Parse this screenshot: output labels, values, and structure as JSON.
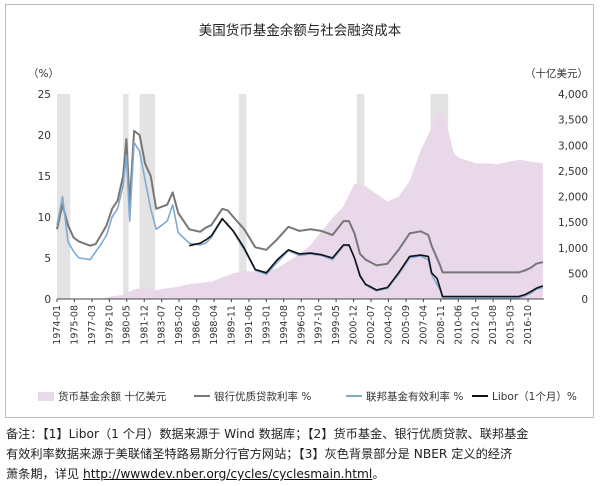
{
  "chart_data": {
    "type": "area+line",
    "title": "美国货币基金余额与社会融资成本",
    "left_unit": "（%）",
    "right_unit": "（十亿美元）",
    "left_ticks": [
      "0",
      "5",
      "10",
      "15",
      "20",
      "25"
    ],
    "left_range": [
      0,
      25
    ],
    "right_ticks": [
      "0",
      "500",
      "1,000",
      "1,500",
      "2,000",
      "2,500",
      "3,000",
      "3,500",
      "4,000"
    ],
    "right_range": [
      0,
      4000
    ],
    "x_range": [
      1974.0,
      2018.2
    ],
    "x_ticks": [
      {
        "label": "1974-01",
        "t": 1974.0
      },
      {
        "label": "1975-08",
        "t": 1975.58
      },
      {
        "label": "1977-03",
        "t": 1977.17
      },
      {
        "label": "1978-10",
        "t": 1978.75
      },
      {
        "label": "1980-05",
        "t": 1980.33
      },
      {
        "label": "1981-12",
        "t": 1981.92
      },
      {
        "label": "1983-07",
        "t": 1983.5
      },
      {
        "label": "1985-02",
        "t": 1985.08
      },
      {
        "label": "1986-09",
        "t": 1986.67
      },
      {
        "label": "1988-04",
        "t": 1988.25
      },
      {
        "label": "1989-11",
        "t": 1989.83
      },
      {
        "label": "1991-06",
        "t": 1991.42
      },
      {
        "label": "1993-01",
        "t": 1993.0
      },
      {
        "label": "1994-08",
        "t": 1994.58
      },
      {
        "label": "1996-03",
        "t": 1996.17
      },
      {
        "label": "1997-10",
        "t": 1997.75
      },
      {
        "label": "1999-05",
        "t": 1999.33
      },
      {
        "label": "2000-12",
        "t": 2000.92
      },
      {
        "label": "2002-07",
        "t": 2002.5
      },
      {
        "label": "2004-02",
        "t": 2004.08
      },
      {
        "label": "2005-09",
        "t": 2005.67
      },
      {
        "label": "2007-04",
        "t": 2007.25
      },
      {
        "label": "2008-11",
        "t": 2008.83
      },
      {
        "label": "2010-06",
        "t": 2010.42
      },
      {
        "label": "2012-01",
        "t": 2012.0
      },
      {
        "label": "2013-08",
        "t": 2013.58
      },
      {
        "label": "2015-03",
        "t": 2015.17
      },
      {
        "label": "2016-10",
        "t": 2016.75
      }
    ],
    "recessions": [
      [
        1973.9,
        1975.2
      ],
      [
        1980.0,
        1980.5
      ],
      [
        1981.5,
        1982.9
      ],
      [
        1990.5,
        1991.2
      ],
      [
        2001.2,
        2001.9
      ],
      [
        2007.9,
        2009.5
      ]
    ],
    "series": [
      {
        "name": "货币基金余额  十亿美元",
        "axis": "right",
        "kind": "area",
        "color": "#e9d7ea",
        "points": [
          [
            1974,
            2
          ],
          [
            1978,
            10
          ],
          [
            1979,
            50
          ],
          [
            1980,
            80
          ],
          [
            1981,
            185
          ],
          [
            1982,
            230
          ],
          [
            1983,
            170
          ],
          [
            1984,
            210
          ],
          [
            1985,
            240
          ],
          [
            1986,
            290
          ],
          [
            1987,
            315
          ],
          [
            1988,
            335
          ],
          [
            1989,
            420
          ],
          [
            1990,
            500
          ],
          [
            1991,
            540
          ],
          [
            1992,
            540
          ],
          [
            1993,
            555
          ],
          [
            1994,
            600
          ],
          [
            1995,
            740
          ],
          [
            1996,
            880
          ],
          [
            1997,
            1050
          ],
          [
            1998,
            1320
          ],
          [
            1999,
            1580
          ],
          [
            2000,
            1810
          ],
          [
            2001,
            2250
          ],
          [
            2002,
            2200
          ],
          [
            2003,
            2050
          ],
          [
            2004,
            1900
          ],
          [
            2005,
            2000
          ],
          [
            2006,
            2300
          ],
          [
            2007,
            2900
          ],
          [
            2007.7,
            3200
          ],
          [
            2008.3,
            3500
          ],
          [
            2008.8,
            3680
          ],
          [
            2009.2,
            3550
          ],
          [
            2009.6,
            3200
          ],
          [
            2010,
            2850
          ],
          [
            2010.5,
            2750
          ],
          [
            2011,
            2720
          ],
          [
            2012,
            2650
          ],
          [
            2013,
            2650
          ],
          [
            2014,
            2630
          ],
          [
            2015,
            2680
          ],
          [
            2016,
            2720
          ],
          [
            2016.5,
            2700
          ],
          [
            2017,
            2680
          ],
          [
            2018.1,
            2650
          ]
        ]
      },
      {
        "name": "银行优质贷款利率  %",
        "axis": "left",
        "kind": "line",
        "color": "#777777",
        "points": [
          [
            1974,
            8.5
          ],
          [
            1974.5,
            11.5
          ],
          [
            1975,
            9
          ],
          [
            1975.5,
            7.5
          ],
          [
            1976,
            7
          ],
          [
            1977,
            6.5
          ],
          [
            1977.5,
            6.7
          ],
          [
            1978,
            7.8
          ],
          [
            1978.5,
            9
          ],
          [
            1979,
            11
          ],
          [
            1979.5,
            12
          ],
          [
            1980,
            15
          ],
          [
            1980.3,
            19.5
          ],
          [
            1980.6,
            11.5
          ],
          [
            1981,
            20.5
          ],
          [
            1981.5,
            20
          ],
          [
            1982,
            16.5
          ],
          [
            1982.5,
            15
          ],
          [
            1983,
            11
          ],
          [
            1984,
            11.5
          ],
          [
            1984.5,
            13
          ],
          [
            1985,
            10.5
          ],
          [
            1986,
            8.5
          ],
          [
            1987,
            8.2
          ],
          [
            1987.5,
            8.7
          ],
          [
            1988,
            9
          ],
          [
            1989,
            11
          ],
          [
            1989.5,
            10.8
          ],
          [
            1990,
            10
          ],
          [
            1991,
            8.5
          ],
          [
            1992,
            6.3
          ],
          [
            1993,
            6.0
          ],
          [
            1994,
            7.3
          ],
          [
            1995,
            8.8
          ],
          [
            1996,
            8.3
          ],
          [
            1997,
            8.5
          ],
          [
            1998,
            8.3
          ],
          [
            1999,
            7.8
          ],
          [
            2000,
            9.5
          ],
          [
            2000.5,
            9.5
          ],
          [
            2001,
            8
          ],
          [
            2001.5,
            5.5
          ],
          [
            2002,
            4.8
          ],
          [
            2003,
            4.1
          ],
          [
            2004,
            4.3
          ],
          [
            2005,
            6.0
          ],
          [
            2006,
            8.0
          ],
          [
            2007,
            8.25
          ],
          [
            2007.7,
            7.8
          ],
          [
            2008,
            6.5
          ],
          [
            2008.8,
            4.0
          ],
          [
            2009,
            3.25
          ],
          [
            2015.9,
            3.25
          ],
          [
            2016.5,
            3.5
          ],
          [
            2017,
            3.8
          ],
          [
            2017.5,
            4.3
          ],
          [
            2018.1,
            4.5
          ]
        ]
      },
      {
        "name": "联邦基金有效利率  %",
        "axis": "left",
        "kind": "line",
        "color": "#7faad3",
        "points": [
          [
            1974,
            9
          ],
          [
            1974.5,
            12.5
          ],
          [
            1975,
            7
          ],
          [
            1975.5,
            5.8
          ],
          [
            1976,
            5
          ],
          [
            1977,
            4.8
          ],
          [
            1978,
            6.7
          ],
          [
            1978.5,
            7.8
          ],
          [
            1979,
            10
          ],
          [
            1979.5,
            11
          ],
          [
            1980,
            13.8
          ],
          [
            1980.3,
            17.5
          ],
          [
            1980.6,
            9.5
          ],
          [
            1981,
            19.1
          ],
          [
            1981.5,
            18
          ],
          [
            1982,
            14.5
          ],
          [
            1982.5,
            11
          ],
          [
            1983,
            8.5
          ],
          [
            1984,
            9.5
          ],
          [
            1984.5,
            11.5
          ],
          [
            1985,
            8.1
          ],
          [
            1986,
            6.8
          ],
          [
            1987,
            6.6
          ],
          [
            1987.5,
            6.8
          ],
          [
            1988,
            7.5
          ],
          [
            1989,
            9.7
          ],
          [
            1989.5,
            9.2
          ],
          [
            1990,
            8.2
          ],
          [
            1991,
            6
          ],
          [
            1992,
            3.5
          ],
          [
            1993,
            3.0
          ],
          [
            1994,
            4.5
          ],
          [
            1995,
            5.9
          ],
          [
            1996,
            5.3
          ],
          [
            1997,
            5.5
          ],
          [
            1998,
            5.3
          ],
          [
            1999,
            4.8
          ],
          [
            2000,
            6.5
          ],
          [
            2000.5,
            6.5
          ],
          [
            2001,
            5
          ],
          [
            2001.5,
            3
          ],
          [
            2002,
            1.7
          ],
          [
            2003,
            1.0
          ],
          [
            2004,
            1.3
          ],
          [
            2005,
            3.0
          ],
          [
            2006,
            5.0
          ],
          [
            2007,
            5.25
          ],
          [
            2007.7,
            4.8
          ],
          [
            2008,
            3.0
          ],
          [
            2008.8,
            1.0
          ],
          [
            2009,
            0.15
          ],
          [
            2015.9,
            0.15
          ],
          [
            2016.5,
            0.4
          ],
          [
            2017,
            0.7
          ],
          [
            2017.5,
            1.2
          ],
          [
            2018.1,
            1.4
          ]
        ]
      },
      {
        "name": "Libor（1个月）%",
        "axis": "left",
        "kind": "line",
        "color": "#111111",
        "points": [
          [
            1986,
            6.5
          ],
          [
            1987,
            6.8
          ],
          [
            1987.5,
            7.2
          ],
          [
            1988,
            7.7
          ],
          [
            1989,
            9.8
          ],
          [
            1989.5,
            9.0
          ],
          [
            1990,
            8.3
          ],
          [
            1991,
            6.2
          ],
          [
            1992,
            3.6
          ],
          [
            1993,
            3.2
          ],
          [
            1994,
            4.8
          ],
          [
            1995,
            6.0
          ],
          [
            1996,
            5.5
          ],
          [
            1997,
            5.6
          ],
          [
            1998,
            5.4
          ],
          [
            1999,
            5.0
          ],
          [
            2000,
            6.6
          ],
          [
            2000.5,
            6.6
          ],
          [
            2001,
            5
          ],
          [
            2001.5,
            2.8
          ],
          [
            2002,
            1.8
          ],
          [
            2003,
            1.1
          ],
          [
            2004,
            1.4
          ],
          [
            2005,
            3.2
          ],
          [
            2006,
            5.2
          ],
          [
            2007,
            5.35
          ],
          [
            2007.7,
            5.2
          ],
          [
            2008,
            3.2
          ],
          [
            2008.5,
            2.5
          ],
          [
            2008.8,
            1.2
          ],
          [
            2009,
            0.3
          ],
          [
            2015.9,
            0.3
          ],
          [
            2016.5,
            0.55
          ],
          [
            2017,
            0.9
          ],
          [
            2017.5,
            1.3
          ],
          [
            2018.1,
            1.6
          ]
        ]
      }
    ],
    "legend_placement": "bottom",
    "legend_entries": [
      "货币基金余额  十亿美元",
      "银行优质贷款利率  %",
      "联邦基金有效利率  %",
      "Libor（1个月）%"
    ]
  },
  "footnote": {
    "line1": "备注：【1】Libor（1 个月）数据来源于 Wind 数据库；【2】货币基金、银行优质贷款、联邦基金",
    "line2": "有效利率数据来源于美联储圣特路易斯分行官方网站；【3】灰色背景部分是 NBER 定义的经济",
    "line3_prefix": "萧条期，详见 ",
    "line3_link": "http://wwwdev.nber.org/cycles/cyclesmain.html",
    "line3_suffix": "。"
  }
}
